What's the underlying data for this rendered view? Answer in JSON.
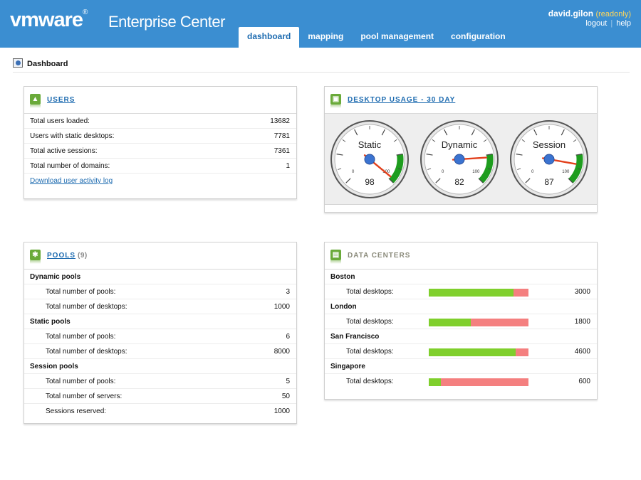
{
  "header": {
    "logo": "vmware",
    "logo_mark": "®",
    "app_title": "Enterprise Center",
    "user": "david.gilon",
    "user_mode": "(readonly)",
    "logout": "logout",
    "separator": "|",
    "help": "help",
    "tabs": [
      {
        "label": "dashboard",
        "active": true
      },
      {
        "label": "mapping",
        "active": false
      },
      {
        "label": "pool management",
        "active": false
      },
      {
        "label": "configuration",
        "active": false
      }
    ]
  },
  "page": {
    "title": "Dashboard",
    "icon": "info-icon"
  },
  "users": {
    "title": "USERS",
    "icon": "user-icon",
    "rows": [
      {
        "label": "Total users loaded:",
        "value": "13682"
      },
      {
        "label": "Users with static desktops:",
        "value": "7781"
      },
      {
        "label": "Total active sessions:",
        "value": "7361"
      },
      {
        "label": "Total number of domains:",
        "value": "1"
      }
    ],
    "link": "Download user activity log"
  },
  "desktop_usage": {
    "title": "DESKTOP USAGE - 30 DAY",
    "icon": "desktops-icon",
    "gauges": [
      {
        "label": "Static",
        "value": 98,
        "min": 0,
        "max": 100,
        "min_label": "0",
        "max_label": "100"
      },
      {
        "label": "Dynamic",
        "value": 82,
        "min": 0,
        "max": 100,
        "min_label": "0",
        "max_label": "100"
      },
      {
        "label": "Session",
        "value": 87,
        "min": 0,
        "max": 100,
        "min_label": "0",
        "max_label": "100"
      }
    ],
    "colors": {
      "green": "#1e9d1e",
      "needle": "#e2401c",
      "hub": "#3b73d0"
    }
  },
  "pools": {
    "title": "POOLS",
    "count": "(9)",
    "icon": "pools-icon",
    "groups": [
      {
        "name": "Dynamic pools",
        "rows": [
          {
            "label": "Total number of pools:",
            "value": "3"
          },
          {
            "label": "Total number of desktops:",
            "value": "1000"
          }
        ]
      },
      {
        "name": "Static pools",
        "rows": [
          {
            "label": "Total number of pools:",
            "value": "6"
          },
          {
            "label": "Total number of desktops:",
            "value": "8000"
          }
        ]
      },
      {
        "name": "Session pools",
        "rows": [
          {
            "label": "Total number of pools:",
            "value": "5"
          },
          {
            "label": "Total number of servers:",
            "value": "50"
          },
          {
            "label": "Sessions reserved:",
            "value": "1000"
          }
        ]
      }
    ]
  },
  "data_centers": {
    "title": "DATA CENTERS",
    "icon": "datacenter-icon",
    "row_label": "Total desktops:",
    "colors": {
      "used": "#7fcf2c",
      "free": "#f47f7f"
    },
    "centers": [
      {
        "name": "Boston",
        "value": "3000",
        "fraction": 0.85
      },
      {
        "name": "London",
        "value": "1800",
        "fraction": 0.42
      },
      {
        "name": "San Francisco",
        "value": "4600",
        "fraction": 0.87
      },
      {
        "name": "Singapore",
        "value": "600",
        "fraction": 0.12
      }
    ]
  }
}
